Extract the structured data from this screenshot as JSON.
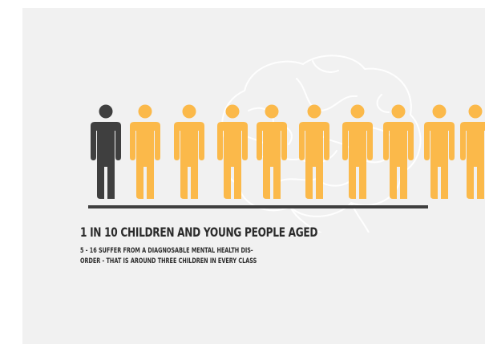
{
  "infographic": {
    "headline": "1 IN 10 CHILDREN AND YOUNG PEOPLE AGED",
    "body_lines": [
      "5 - 16 SUFFER FROM A DIAGNOSABLE MENTAL HEALTH DIS-",
      "ORDER - THAT IS AROUND THREE CHILDREN IN EVERY CLASS"
    ]
  },
  "figures": {
    "highlighted_count": 1,
    "total_count": 10,
    "visible_count": 10
  },
  "colors": {
    "background": "#f1f1f1",
    "highlight": "#3f3f3f",
    "figure": "#fbb94a",
    "text": "#2b2b2b",
    "divider": "#3f3f3f",
    "brain_outline": "#ffffff"
  },
  "icons": {
    "person": "person-icon",
    "background": "brain-outline-icon"
  }
}
